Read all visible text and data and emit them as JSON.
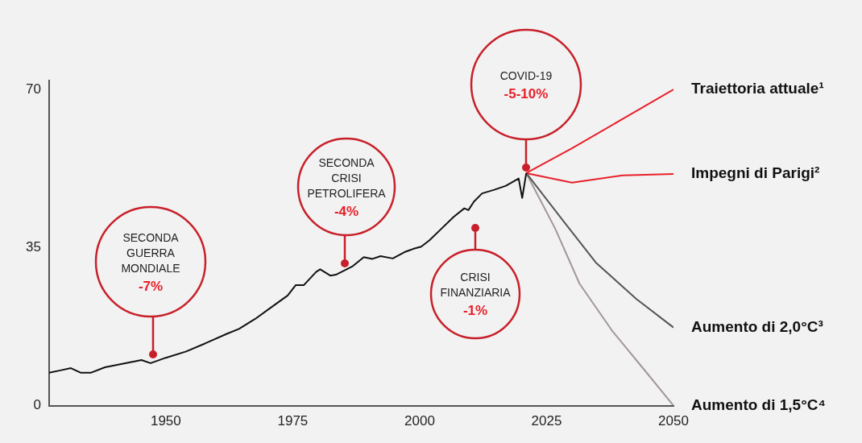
{
  "chart_data": {
    "type": "line",
    "xlim": [
      1927,
      2050
    ],
    "xticks": [
      1950,
      1975,
      2000,
      2025,
      2050
    ],
    "ylim": [
      0,
      72
    ],
    "yticks": [
      0,
      35,
      70
    ],
    "grid": false,
    "legend": false,
    "marker": "none",
    "line_style": "solid",
    "series": [
      {
        "color": "#111111",
        "x": [
          1927,
          1929.2,
          1931.3,
          1933.2,
          1935.3,
          1938,
          1942,
          1945.2,
          1947,
          1950,
          1954,
          1958,
          1962,
          1964.4,
          1967.6,
          1970.8,
          1974,
          1975.6,
          1977.2,
          1979.6,
          1980.4,
          1982.4,
          1983.5,
          1986.7,
          1989,
          1990.7,
          1992.3,
          1994.7,
          1997,
          1998.7,
          2000.3,
          2001.9,
          2004.3,
          2006.7,
          2008.8,
          2009.6,
          2010.7,
          2012.3,
          2014.7,
          2017,
          2019.5,
          2020.2,
          2021
        ],
        "values": [
          7.3,
          7.8,
          8.3,
          7.3,
          7.3,
          8.5,
          9.4,
          10.1,
          9.4,
          10.6,
          12,
          13.9,
          15.9,
          17,
          19.2,
          21.8,
          24.4,
          26.7,
          26.7,
          29.6,
          30.2,
          28.8,
          29,
          30.8,
          32.9,
          32.5,
          33.1,
          32.6,
          34,
          34.7,
          35.2,
          36.6,
          39.2,
          41.8,
          43.7,
          43.3,
          45.2,
          47,
          47.8,
          48.7,
          50.3,
          46,
          51.5
        ]
      },
      {
        "name": "Traiettoria attuale¹",
        "color": "#e8202a",
        "x": [
          2021,
          2030,
          2040,
          2050
        ],
        "values": [
          51.5,
          57,
          63.5,
          70
        ]
      },
      {
        "name": "Impegni di Parigi²",
        "color": "#e8202a",
        "x": [
          2021,
          2030,
          2040,
          2050
        ],
        "values": [
          51.5,
          49.4,
          51,
          51.3
        ]
      },
      {
        "name": "Aumento di 2,0°C³",
        "color": "#555555",
        "x": [
          2021,
          2028.3,
          2034.7,
          2042.7,
          2050
        ],
        "values": [
          51.5,
          40.9,
          31.7,
          23.6,
          17.3
        ]
      },
      {
        "name": "Aumento di 1,5°C⁴",
        "color": "#a39696",
        "x": [
          2021,
          2026.7,
          2031.5,
          2037.9,
          2044.2,
          2050
        ],
        "values": [
          51.5,
          39.2,
          27,
          16.6,
          8,
          0
        ]
      }
    ],
    "annotations": [
      "SECONDA GUERRA MONDIALE -7%",
      "SECONDA CRISI PETROLIFERA -4%",
      "CRISI FINANZIARIA -1%",
      "COVID-19 -5-10%"
    ]
  }
}
